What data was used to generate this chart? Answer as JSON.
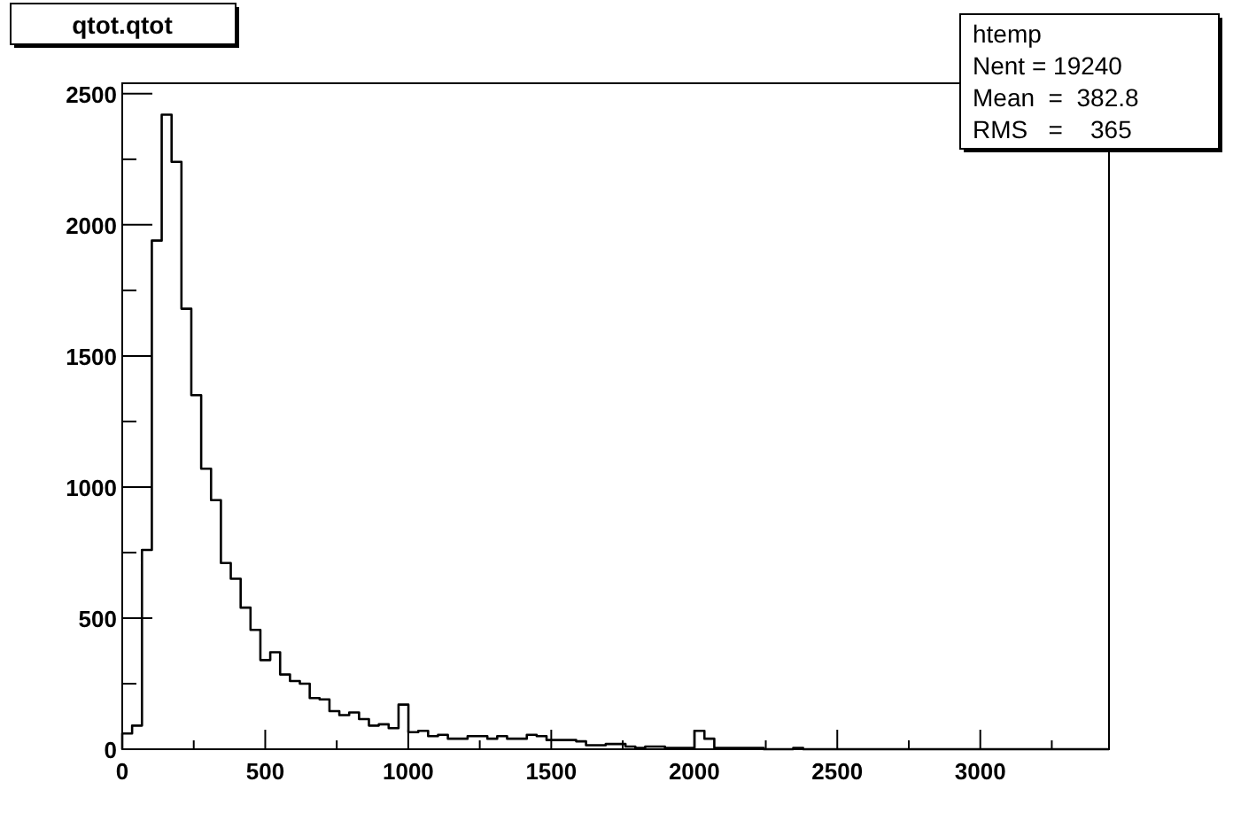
{
  "chart_data": {
    "type": "histogram",
    "title": "qtot.qtot",
    "bins": [
      0,
      34.5,
      69,
      103.5,
      138,
      172.5,
      207,
      241.5,
      276,
      310.5,
      345,
      379.5,
      414,
      448.5,
      483,
      517.5,
      552,
      586.5,
      621,
      655.5,
      690,
      724.5,
      759,
      793.5,
      828,
      862.5,
      897,
      931.5,
      966,
      1000.5,
      1035,
      1069.5,
      1104,
      1138.5,
      1173,
      1207.5,
      1242,
      1276.5,
      1311,
      1345.5,
      1380,
      1414.5,
      1449,
      1483.5,
      1518,
      1552.5,
      1587,
      1621.5,
      1656,
      1690.5,
      1725,
      1759.5,
      1794,
      1828.5,
      1863,
      1897.5,
      1932,
      1966.5,
      2001,
      2035.5,
      2070,
      2104.5,
      2139,
      2173.5,
      2208,
      2242.5,
      2277,
      2311.5,
      2346,
      2380.5,
      2415,
      2449.5,
      2484,
      2518.5,
      2553,
      2587.5,
      2622,
      2656.5,
      2691,
      2725.5,
      2760,
      2794.5,
      2829,
      2863.5,
      2898,
      2932.5,
      2967,
      3001.5,
      3036,
      3070.5,
      3105,
      3139.5,
      3174,
      3208.5,
      3243,
      3277.5,
      3312,
      3346.5,
      3381,
      3415.5,
      3450
    ],
    "values": [
      60,
      90,
      760,
      1940,
      2420,
      2240,
      1680,
      1350,
      1070,
      950,
      710,
      650,
      540,
      455,
      340,
      370,
      285,
      260,
      250,
      195,
      190,
      145,
      130,
      140,
      115,
      90,
      95,
      80,
      170,
      65,
      70,
      50,
      55,
      40,
      40,
      50,
      50,
      40,
      50,
      40,
      40,
      55,
      50,
      35,
      35,
      35,
      30,
      15,
      15,
      20,
      20,
      10,
      5,
      10,
      10,
      5,
      5,
      5,
      70,
      40,
      5,
      5,
      5,
      5,
      5,
      0,
      0,
      0,
      5,
      0,
      0,
      0,
      0,
      0,
      0,
      0,
      0,
      0,
      0,
      0,
      0,
      0,
      0,
      0,
      0,
      0,
      0,
      0,
      0,
      0,
      0,
      0,
      0,
      0,
      0,
      0,
      0,
      0,
      0,
      0
    ],
    "color": "#000000",
    "xlim": [
      0,
      3450
    ],
    "ylim": [
      0,
      2540
    ],
    "xticks": [
      0,
      {
        "value": 250,
        "label": null
      },
      500,
      {
        "value": 750,
        "label": null
      },
      1000,
      {
        "value": 1250,
        "label": null
      },
      1500,
      {
        "value": 1750,
        "label": null
      },
      2000,
      {
        "value": 2250,
        "label": null
      },
      2500,
      {
        "value": 2750,
        "label": null
      },
      3000,
      {
        "value": 3250,
        "label": null
      }
    ],
    "yticks": [
      0,
      {
        "value": 250,
        "label": null
      },
      500,
      {
        "value": 750,
        "label": null
      },
      1000,
      {
        "value": 1250,
        "label": null
      },
      1500,
      {
        "value": 1750,
        "label": null
      },
      2000,
      {
        "value": 2250,
        "label": null
      },
      2500
    ],
    "annotations": [
      "htemp",
      "Nent = 19240",
      "Mean  =  382.8",
      "RMS   =    365"
    ]
  }
}
